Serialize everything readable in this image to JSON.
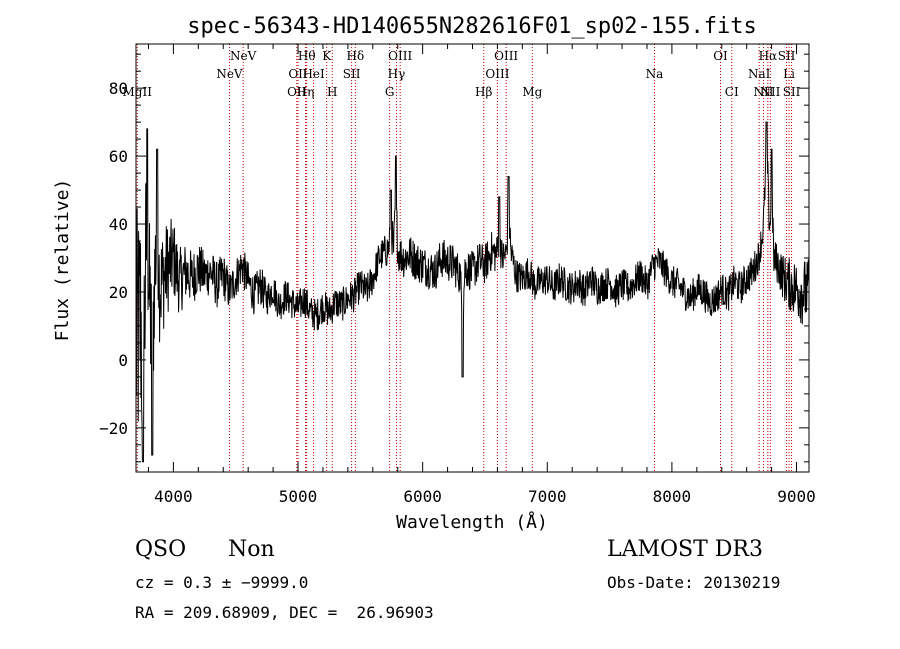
{
  "chart_data": {
    "type": "line",
    "title": "spec-56343-HD140655N282616F01_sp02-155.fits",
    "xlabel": "Wavelength (Å)",
    "ylabel": "Flux (relative)",
    "xlim": [
      3700,
      9100
    ],
    "ylim": [
      -33,
      93
    ],
    "x_ticks": [
      4000,
      5000,
      6000,
      7000,
      8000,
      9000
    ],
    "y_ticks": [
      -20,
      0,
      20,
      40,
      60,
      80
    ],
    "x_tick_labels": [
      "4000",
      "5000",
      "6000",
      "7000",
      "8000",
      "9000"
    ],
    "y_tick_labels": [
      "−20",
      "0",
      "20",
      "40",
      "60",
      "80"
    ],
    "grid": false,
    "series": [
      {
        "x": [
          3710,
          3760,
          3800,
          3850,
          3900,
          3950,
          4000,
          4050,
          4100,
          4150,
          4200,
          4250,
          4300,
          4350,
          4400,
          4450,
          4500,
          4550,
          4600,
          4650,
          4700,
          4750,
          4800,
          4850,
          4900,
          4950,
          5000,
          5050,
          5100,
          5150,
          5200,
          5250,
          5300,
          5350,
          5400,
          5450,
          5500,
          5550,
          5600,
          5650,
          5700,
          5750,
          5800,
          5850,
          5900,
          5950,
          6000,
          6050,
          6100,
          6150,
          6200,
          6250,
          6300,
          6350,
          6400,
          6450,
          6500,
          6550,
          6600,
          6650,
          6700,
          6750,
          6800,
          6850,
          6900,
          6950,
          7000,
          7050,
          7100,
          7150,
          7200,
          7250,
          7300,
          7350,
          7400,
          7450,
          7500,
          7550,
          7600,
          7650,
          7700,
          7750,
          7800,
          7850,
          7900,
          7950,
          8000,
          8050,
          8100,
          8150,
          8200,
          8250,
          8300,
          8350,
          8400,
          8450,
          8500,
          8550,
          8600,
          8650,
          8700,
          8730,
          8760,
          8790,
          8820,
          8850,
          8900,
          8950,
          9000,
          9050
        ],
        "y": [
          5,
          20,
          15,
          25,
          22,
          27,
          30,
          23,
          26,
          24,
          27,
          25,
          26,
          22,
          25,
          20,
          24,
          28,
          23,
          19,
          22,
          18,
          21,
          16,
          19,
          17,
          15,
          18,
          14,
          13,
          16,
          14,
          17,
          16,
          18,
          19,
          22,
          20,
          24,
          30,
          32,
          33,
          32,
          30,
          31,
          29,
          28,
          27,
          26,
          30,
          29,
          28,
          25,
          27,
          26,
          29,
          28,
          32,
          31,
          30,
          33,
          25,
          24,
          26,
          22,
          23,
          24,
          21,
          24,
          22,
          21,
          23,
          20,
          24,
          21,
          22,
          23,
          20,
          22,
          21,
          23,
          25,
          22,
          28,
          29,
          26,
          23,
          22,
          20,
          18,
          21,
          20,
          17,
          18,
          21,
          19,
          23,
          21,
          24,
          26,
          31,
          38,
          56,
          35,
          30,
          28,
          24,
          22,
          21,
          20
        ],
        "noise_amplitude": [
          40,
          34,
          26,
          20,
          17,
          14,
          12,
          10,
          9,
          8,
          8,
          7,
          7,
          7,
          7,
          6,
          6,
          6,
          6,
          6,
          6,
          5,
          5,
          5,
          5,
          5,
          5,
          5,
          5,
          5,
          5,
          5,
          5,
          5,
          5,
          5,
          5,
          5,
          5,
          5,
          5,
          6,
          6,
          6,
          6,
          6,
          6,
          6,
          6,
          6,
          6,
          6,
          6,
          6,
          6,
          6,
          6,
          6,
          6,
          6,
          6,
          5,
          5,
          5,
          5,
          5,
          5,
          5,
          5,
          5,
          5,
          5,
          5,
          5,
          5,
          5,
          5,
          5,
          5,
          5,
          5,
          5,
          5,
          5,
          5,
          5,
          5,
          5,
          5,
          5,
          5,
          5,
          5,
          5,
          5,
          5,
          5,
          5,
          5,
          5,
          5,
          5,
          5,
          5,
          6,
          6,
          7,
          8,
          9,
          10
        ],
        "spikes": [
          {
            "x": 3755,
            "y": -30
          },
          {
            "x": 3790,
            "y": 68
          },
          {
            "x": 3830,
            "y": -28
          },
          {
            "x": 3870,
            "y": 62
          },
          {
            "x": 5745,
            "y": 50
          },
          {
            "x": 5785,
            "y": 60
          },
          {
            "x": 6320,
            "y": -5
          },
          {
            "x": 6615,
            "y": 48
          },
          {
            "x": 6690,
            "y": 54
          },
          {
            "x": 8760,
            "y": 70
          },
          {
            "x": 8800,
            "y": 62
          }
        ]
      }
    ],
    "lines": [
      {
        "label": "MgII",
        "x": 3710,
        "row": 2
      },
      {
        "label": "NeV",
        "x": 4450,
        "row": 1
      },
      {
        "label": "NeV",
        "x": 4560,
        "row": 0
      },
      {
        "label": "OII",
        "x": 4990,
        "row": 2
      },
      {
        "label": "OII",
        "x": 5000,
        "row": 1
      },
      {
        "label": "Hη",
        "x": 5060,
        "row": 2
      },
      {
        "label": "Hθ",
        "x": 5070,
        "row": 0
      },
      {
        "label": "HeI",
        "x": 5125,
        "row": 1
      },
      {
        "label": "K",
        "x": 5230,
        "row": 0
      },
      {
        "label": "H",
        "x": 5275,
        "row": 2
      },
      {
        "label": "SII",
        "x": 5430,
        "row": 1
      },
      {
        "label": "Hδ",
        "x": 5460,
        "row": 0
      },
      {
        "label": "G",
        "x": 5735,
        "row": 2
      },
      {
        "label": "Hγ",
        "x": 5790,
        "row": 1
      },
      {
        "label": "OIII",
        "x": 5820,
        "row": 0
      },
      {
        "label": "Hβ",
        "x": 6490,
        "row": 2
      },
      {
        "label": "OIII",
        "x": 6600,
        "row": 1
      },
      {
        "label": "OIII",
        "x": 6670,
        "row": 0
      },
      {
        "label": "Mg",
        "x": 6880,
        "row": 2
      },
      {
        "label": "Na",
        "x": 7860,
        "row": 1
      },
      {
        "label": "OI",
        "x": 8390,
        "row": 0
      },
      {
        "label": "CI",
        "x": 8480,
        "row": 2
      },
      {
        "label": "NaI",
        "x": 8700,
        "row": 1
      },
      {
        "label": "NII",
        "x": 8735,
        "row": 2
      },
      {
        "label": "Hα",
        "x": 8770,
        "row": 0
      },
      {
        "label": "NII",
        "x": 8790,
        "row": 2
      },
      {
        "label": "SII",
        "x": 8920,
        "row": 0
      },
      {
        "label": "Li",
        "x": 8940,
        "row": 1
      },
      {
        "label": "SII",
        "x": 8960,
        "row": 2
      }
    ],
    "line_color": "#cc0000",
    "spectrum_color": "#000000"
  },
  "info": {
    "class": "QSO",
    "subclass": "Non",
    "survey": "LAMOST DR3",
    "cz": "cz = 0.3 ± −9999.0",
    "obs_date": "Obs-Date: 20130219",
    "radec": "RA = 209.68909, DEC =  26.96903"
  }
}
